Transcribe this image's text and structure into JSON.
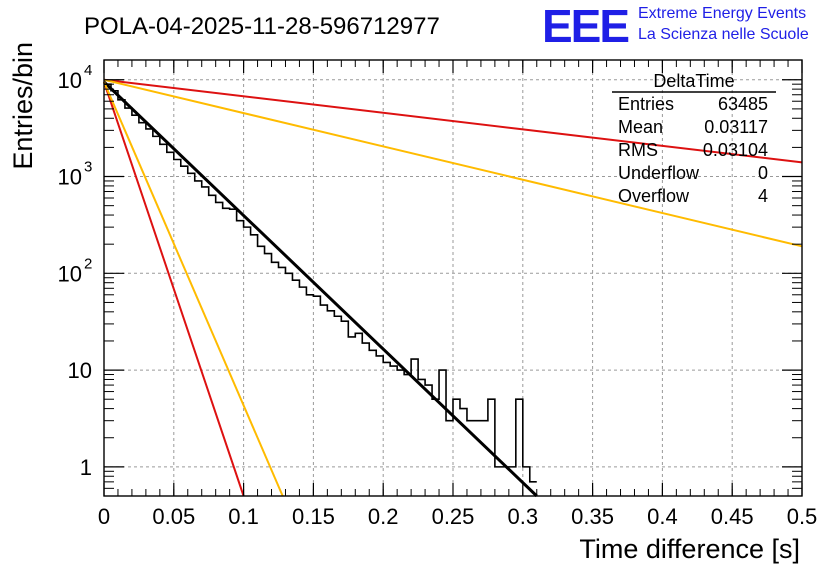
{
  "chart_data": {
    "type": "histogram",
    "title": "POLA-04-2025-11-28-596712977",
    "xlabel": "Time difference [s]",
    "ylabel": "Entries/bin",
    "xlim": [
      0,
      0.5
    ],
    "ylim": [
      0.5,
      16000
    ],
    "yscale": "log",
    "grid": true,
    "x_ticks": [
      "0",
      "0.05",
      "0.1",
      "0.15",
      "0.2",
      "0.25",
      "0.3",
      "0.35",
      "0.4",
      "0.45",
      "0.5"
    ],
    "y_ticks": [
      {
        "value": 1,
        "label": "1"
      },
      {
        "value": 10,
        "label": "10"
      },
      {
        "value": 100,
        "label": "10",
        "sup": "2"
      },
      {
        "value": 1000,
        "label": "10",
        "sup": "3"
      },
      {
        "value": 10000,
        "label": "10",
        "sup": "4"
      }
    ],
    "bin_width": 0.005,
    "histogram_counts": [
      9000,
      7700,
      6200,
      5100,
      4300,
      3600,
      3100,
      2600,
      2150,
      1780,
      1500,
      1280,
      1080,
      900,
      780,
      640,
      540,
      470,
      460,
      350,
      300,
      250,
      190,
      160,
      130,
      115,
      100,
      85,
      72,
      60,
      58,
      47,
      41,
      36,
      32,
      22,
      24,
      19,
      16,
      14,
      12,
      11,
      10,
      9,
      13,
      8,
      7,
      5,
      10,
      3,
      5,
      4,
      3,
      3,
      3,
      5,
      1,
      1,
      1,
      5,
      1,
      0.7
    ],
    "fit_lines": [
      {
        "name": "fit",
        "color": "#000000",
        "x": [
          0,
          0.31
        ],
        "y": [
          9500,
          0.5
        ]
      },
      {
        "name": "red-steep",
        "color": "#dd1111",
        "x": [
          0,
          0.1
        ],
        "y": [
          9500,
          0.5
        ]
      },
      {
        "name": "yellow-steep",
        "color": "#ffbb00",
        "x": [
          0,
          0.128
        ],
        "y": [
          9500,
          0.5
        ]
      },
      {
        "name": "red-flat",
        "color": "#dd1111",
        "x": [
          0,
          0.5
        ],
        "y": [
          10000,
          1400
        ]
      },
      {
        "name": "yellow-flat",
        "color": "#ffbb00",
        "x": [
          0,
          0.5
        ],
        "y": [
          10000,
          190
        ]
      }
    ]
  },
  "stats_box": {
    "title": "DeltaTime",
    "rows": [
      {
        "label": "Entries",
        "value": "63485"
      },
      {
        "label": "Mean",
        "value": "0.03117"
      },
      {
        "label": "RMS",
        "value": "0.03104"
      },
      {
        "label": "Underflow",
        "value": "0"
      },
      {
        "label": "Overflow",
        "value": "4"
      }
    ]
  },
  "logo": {
    "mark": "EEE",
    "line1": "Extreme Energy Events",
    "line2": "La Scienza nelle Scuole"
  }
}
